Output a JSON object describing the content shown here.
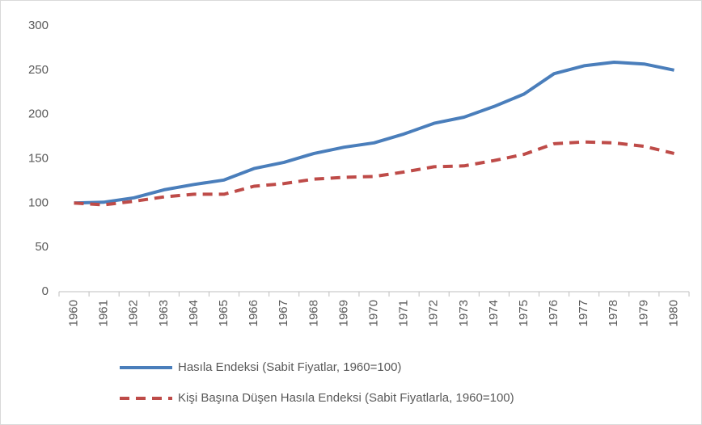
{
  "chart_data": {
    "type": "line",
    "categories": [
      "1960",
      "1961",
      "1962",
      "1963",
      "1964",
      "1965",
      "1966",
      "1967",
      "1968",
      "1969",
      "1970",
      "1971",
      "1972",
      "1973",
      "1974",
      "1975",
      "1976",
      "1977",
      "1978",
      "1979",
      "1980"
    ],
    "series": [
      {
        "name": "Hasıla Endeksi (Sabit Fiyatlar, 1960=100)",
        "color": "#4a7ebb",
        "dash": false,
        "values": [
          100,
          101,
          106,
          115,
          121,
          126,
          139,
          146,
          156,
          163,
          168,
          178,
          190,
          197,
          209,
          223,
          246,
          255,
          259,
          257,
          250
        ]
      },
      {
        "name": "Kişi Başına Düşen Hasıla Endeksi (Sabit Fiyatlarla, 1960=100)",
        "color": "#be4b48",
        "dash": true,
        "values": [
          100,
          98,
          102,
          107,
          110,
          110,
          119,
          122,
          127,
          129,
          130,
          135,
          141,
          142,
          148,
          155,
          167,
          169,
          168,
          164,
          156
        ]
      }
    ],
    "ylim": [
      0,
      300
    ],
    "yticks": [
      0,
      50,
      100,
      150,
      200,
      250,
      300
    ],
    "grid": false
  }
}
